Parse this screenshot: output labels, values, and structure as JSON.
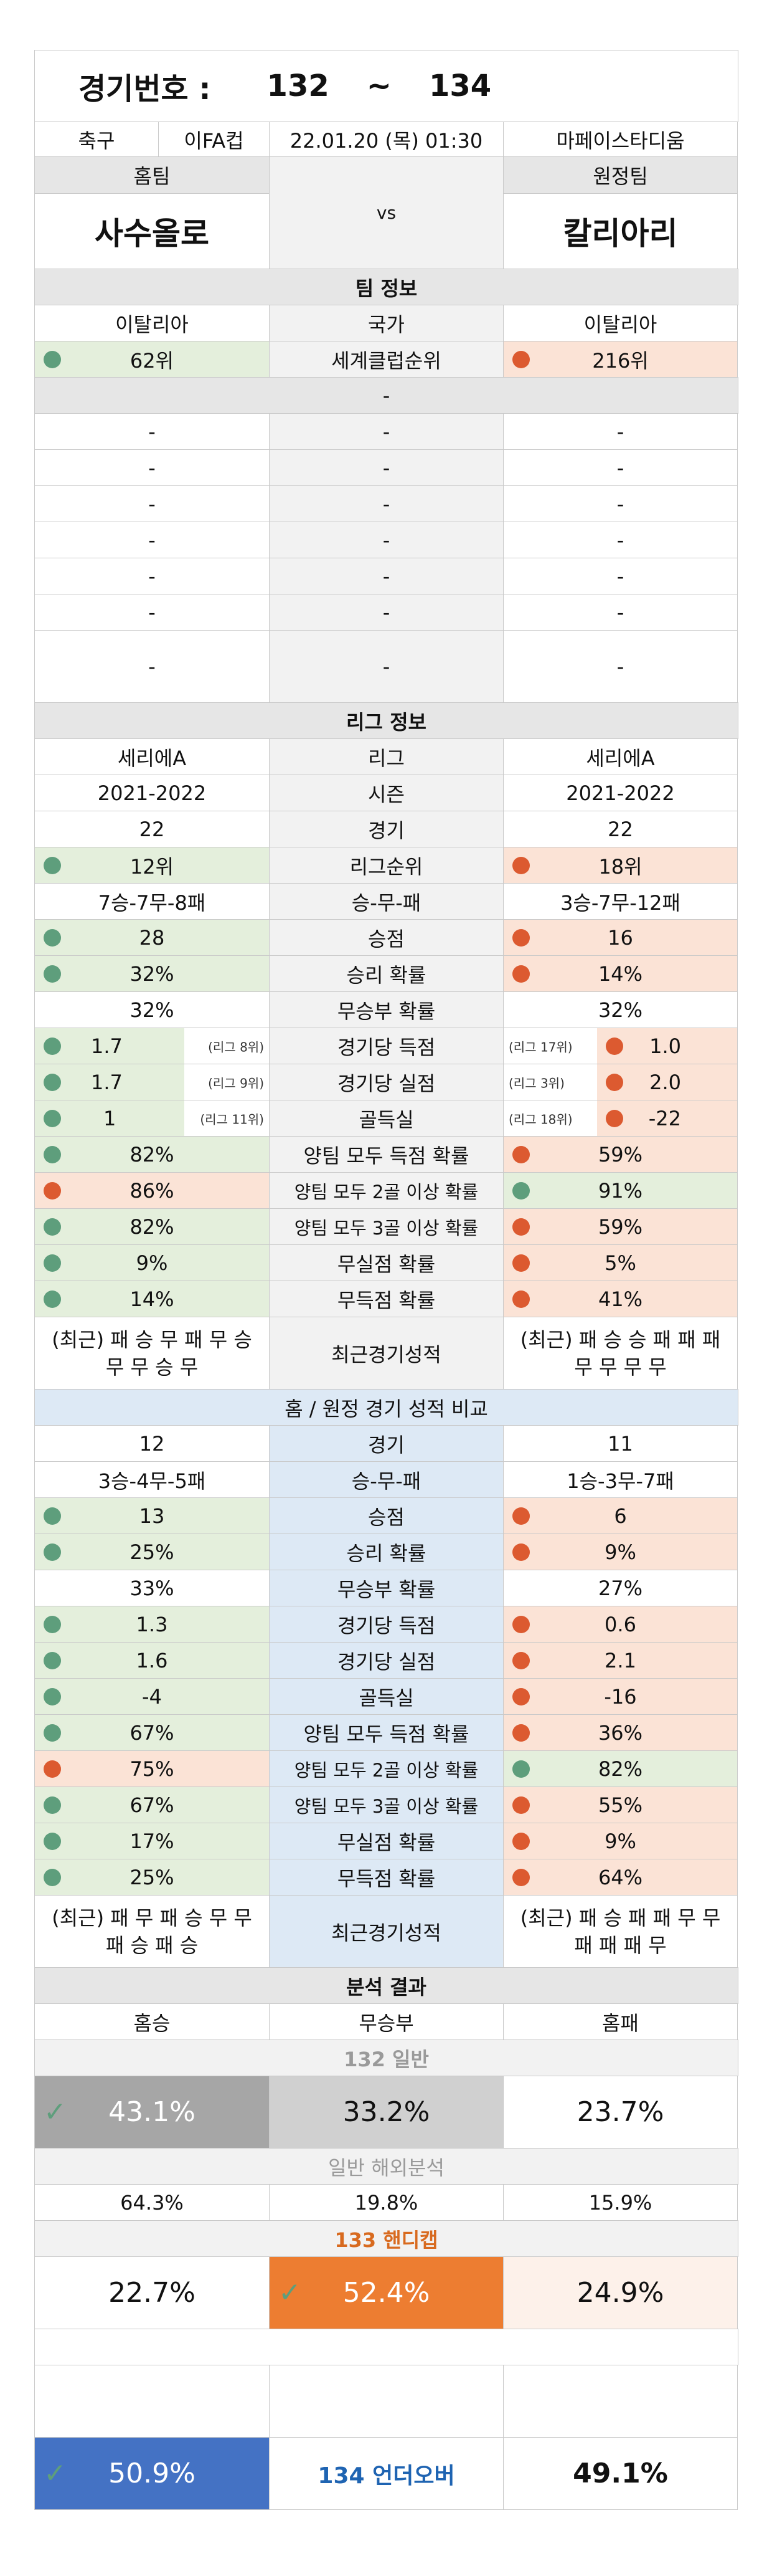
{
  "header": {
    "label": "경기번호 :",
    "from": "132",
    "sep": "~",
    "to": "134"
  },
  "match": {
    "sport": "축구",
    "league": "이FA컵",
    "datetime": "22.01.20 (목) 01:30",
    "venue": "마페이스타디움"
  },
  "teams": {
    "home_label": "홈팀",
    "away_label": "원정팀",
    "home": "사수올로",
    "vs": "vs",
    "away": "칼리아리"
  },
  "team_info": {
    "title": "팀 정보",
    "country": {
      "home": "이탈리아",
      "label": "국가",
      "away": "이탈리아"
    },
    "club_rank": {
      "home": "62위",
      "label": "세계클럽순위",
      "away": "216위"
    },
    "sep": "-",
    "empty": "-"
  },
  "league_info": {
    "title": "리그 정보",
    "rows": [
      {
        "home": "세리에A",
        "label": "리그",
        "away": "세리에A"
      },
      {
        "home": "2021-2022",
        "label": "시즌",
        "away": "2021-2022"
      },
      {
        "home": "22",
        "label": "경기",
        "away": "22"
      }
    ],
    "rank": {
      "home": "12위",
      "label": "리그순위",
      "away": "18위"
    },
    "wdl": {
      "home": "7승-7무-8패",
      "label": "승-무-패",
      "away": "3승-7무-12패"
    },
    "points": {
      "home": "28",
      "label": "승점",
      "away": "16"
    },
    "win_rate": {
      "home": "32%",
      "label": "승리 확률",
      "away": "14%"
    },
    "draw_rate": {
      "home": "32%",
      "label": "무승부 확률",
      "away": "32%"
    },
    "gf": {
      "home": "1.7",
      "home_note": "(리그 8위)",
      "label": "경기당 득점",
      "away_note": "(리그 17위)",
      "away": "1.0"
    },
    "ga": {
      "home": "1.7",
      "home_note": "(리그 9위)",
      "label": "경기당 실점",
      "away_note": "(리그 3위)",
      "away": "2.0"
    },
    "gd": {
      "home": "1",
      "home_note": "(리그 11위)",
      "label": "골득실",
      "away_note": "(리그 18위)",
      "away": "-22"
    },
    "btts": {
      "home": "82%",
      "label": "양팀 모두 득점 확률",
      "away": "59%"
    },
    "btts2": {
      "home": "86%",
      "label": "양팀 모두 2골 이상 확률",
      "away": "91%"
    },
    "btts3": {
      "home": "82%",
      "label": "양팀 모두 3골 이상 확률",
      "away": "59%"
    },
    "clean": {
      "home": "9%",
      "label": "무실점 확률",
      "away": "5%"
    },
    "noscore": {
      "home": "14%",
      "label": "무득점 확률",
      "away": "41%"
    },
    "recent": {
      "home": "(최근) 패 승 무 패 무 승 무 무 승 무",
      "label": "최근경기성적",
      "away": "(최근) 패 승 승 패 패 패 무 무 무 무"
    }
  },
  "homeaway": {
    "title": "홈 / 원정 경기 성적 비교",
    "games": {
      "home": "12",
      "label": "경기",
      "away": "11"
    },
    "wdl": {
      "home": "3승-4무-5패",
      "label": "승-무-패",
      "away": "1승-3무-7패"
    },
    "points": {
      "home": "13",
      "label": "승점",
      "away": "6"
    },
    "win_rate": {
      "home": "25%",
      "label": "승리 확률",
      "away": "9%"
    },
    "draw_rate": {
      "home": "33%",
      "label": "무승부 확률",
      "away": "27%"
    },
    "gf": {
      "home": "1.3",
      "label": "경기당 득점",
      "away": "0.6"
    },
    "ga": {
      "home": "1.6",
      "label": "경기당 실점",
      "away": "2.1"
    },
    "gd": {
      "home": "-4",
      "label": "골득실",
      "away": "-16"
    },
    "btts": {
      "home": "67%",
      "label": "양팀 모두 득점 확률",
      "away": "36%"
    },
    "btts2": {
      "home": "75%",
      "label": "양팀 모두 2골 이상 확률",
      "away": "82%"
    },
    "btts3": {
      "home": "67%",
      "label": "양팀 모두 3골 이상 확률",
      "away": "55%"
    },
    "clean": {
      "home": "17%",
      "label": "무실점 확률",
      "away": "9%"
    },
    "noscore": {
      "home": "25%",
      "label": "무득점 확률",
      "away": "64%"
    },
    "recent": {
      "home": "(최근) 패 무 패 승 무 무 패 승 패 승",
      "label": "최근경기성적",
      "away": "(최근) 패 승 패 패 무 무 패 패 패 무"
    }
  },
  "analysis": {
    "title": "분석 결과",
    "cols": {
      "home_win": "홈승",
      "draw": "무승부",
      "home_loss": "홈패"
    },
    "general_title": "132 일반",
    "general": {
      "home_win": "43.1%",
      "draw": "33.2%",
      "home_loss": "23.7%"
    },
    "overseas_title": "일반 해외분석",
    "overseas": {
      "home_win": "64.3%",
      "draw": "19.8%",
      "home_loss": "15.9%"
    },
    "handicap_title": "133 핸디캡",
    "handicap": {
      "home_win": "22.7%",
      "draw": "52.4%",
      "home_loss": "24.9%"
    },
    "underover": {
      "under": "50.9%",
      "label": "134 언더오버",
      "over": "49.1%"
    }
  },
  "colors": {
    "green_bg": "#e4efdc",
    "orange_bg": "#fbe3d6",
    "blue_bg": "#dde9f5",
    "dot_green": "#5e9e7c",
    "dot_orange": "#dc5a30",
    "pick_gray": "#a6a6a6",
    "pick_orange": "#ed7d31",
    "pick_blue": "#4472c4"
  },
  "icons": {
    "check": "checkmark-icon",
    "dot": "indicator-dot-icon"
  }
}
